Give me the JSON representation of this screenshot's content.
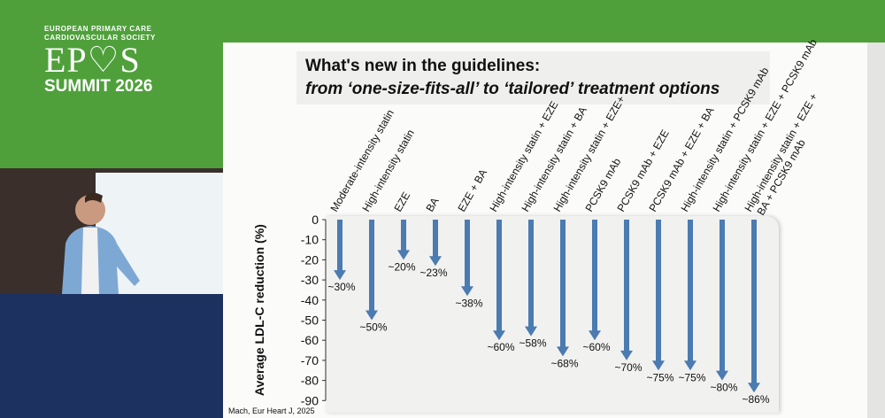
{
  "logo": {
    "line1": "EUROPEAN PRIMARY CARE",
    "line2": "CARDIOVASCULAR SOCIETY",
    "name": "EPCCS",
    "event": "SUMMIT 2026"
  },
  "slide": {
    "title_line1": "What's new in the guidelines:",
    "title_line2": "from ‘one-size-fits-all’ to ‘tailored’ treatment options",
    "citation": "Mach, Eur Heart J, 2025"
  },
  "colors": {
    "green": "#4fa03b",
    "navy": "#1d3160",
    "arrow": "#4b7bb0"
  },
  "chart_data": {
    "type": "bar",
    "title": "",
    "ylabel": "Average LDL-C reduction (%)",
    "ylim": [
      -90,
      0
    ],
    "yticks": [
      "0",
      "-10",
      "-20",
      "-30",
      "-40",
      "-50",
      "-60",
      "-70",
      "-80",
      "-90"
    ],
    "categories": [
      "Moderate-intensity statin",
      "High-intensity statin",
      "EZE",
      "BA",
      "EZE + BA",
      "High-intensity statin + EZE",
      "High-intensity statin + BA",
      "High-intensity statin + EZE+",
      "PCSK9 mAb",
      "PCSK9 mAb + EZE",
      "PCSK9 mAb + EZE + BA",
      "High-intensity statin + PCSK9 mAb",
      "High-intensity statin + EZE + PCSK9 mAb",
      "High-intensity statin + EZE + BA + PCSK9 mAb"
    ],
    "values": [
      -30,
      -50,
      -20,
      -23,
      -38,
      -60,
      -58,
      -68,
      -60,
      -70,
      -75,
      -75,
      -80,
      -86
    ],
    "labels": [
      "~30%",
      "~50%",
      "~20%",
      "~23%",
      "~38%",
      "~60%",
      "~58%",
      "~68%",
      "~60%",
      "~70%",
      "~75%",
      "~75%",
      "~80%",
      "~86%"
    ]
  }
}
